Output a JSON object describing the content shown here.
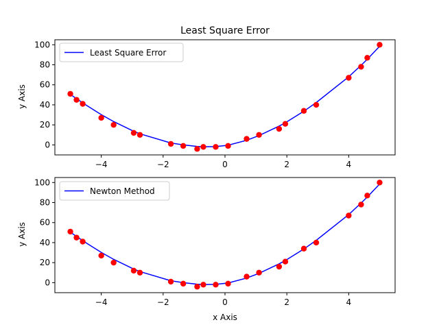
{
  "chart_data": [
    {
      "type": "line",
      "title": "Least Square Error",
      "xlabel": "",
      "ylabel": "y Axis",
      "xlim": [
        -5.5,
        5.5
      ],
      "ylim": [
        -10,
        105
      ],
      "xticks": [
        -4,
        -2,
        0,
        2,
        4
      ],
      "xtick_labels": [
        "−4",
        "−2",
        "0",
        "2",
        "4"
      ],
      "yticks": [
        0,
        20,
        40,
        60,
        80,
        100
      ],
      "ytick_labels": [
        "0",
        "20",
        "40",
        "60",
        "80",
        "100"
      ],
      "grid": false,
      "legend": {
        "placement": "top-left",
        "entries": [
          "Least Square Error"
        ]
      },
      "scatter_color": "#ff0000",
      "line_color": "#0000ff",
      "points": {
        "x": [
          -5.0,
          -4.8,
          -4.6,
          -4.0,
          -3.6,
          -2.95,
          -2.75,
          -1.75,
          -1.35,
          -0.9,
          -0.7,
          -0.3,
          0.1,
          0.7,
          1.1,
          1.75,
          1.95,
          2.55,
          2.95,
          4.0,
          4.4,
          4.6,
          5.0
        ],
        "y": [
          51,
          45,
          41,
          27,
          20,
          12,
          10,
          1,
          -1,
          -4,
          -2,
          -2,
          -1,
          6,
          10,
          16,
          21,
          34,
          40,
          67,
          78,
          87,
          100
        ]
      },
      "series": [
        {
          "name": "Least Square Error",
          "x": [
            -5.0,
            -4.8,
            -4.6,
            -4.0,
            -3.6,
            -2.95,
            -2.75,
            -1.75,
            -1.35,
            -0.9,
            -0.7,
            -0.3,
            0.1,
            0.7,
            1.1,
            1.75,
            1.95,
            2.55,
            2.95,
            4.0,
            4.4,
            4.6,
            5.0
          ],
          "y": [
            50.5,
            46.1,
            41.9,
            30.2,
            23.3,
            13.6,
            11.1,
            1.9,
            0.0,
            -1.5,
            -1.9,
            -1.7,
            -0.3,
            4.6,
            9.3,
            18.8,
            22.1,
            33.6,
            42.3,
            68.0,
            79.5,
            85.5,
            98.5
          ]
        }
      ]
    },
    {
      "type": "line",
      "title": "",
      "xlabel": "x Axis",
      "ylabel": "y Axis",
      "xlim": [
        -5.5,
        5.5
      ],
      "ylim": [
        -10,
        105
      ],
      "xticks": [
        -4,
        -2,
        0,
        2,
        4
      ],
      "xtick_labels": [
        "−4",
        "−2",
        "0",
        "2",
        "4"
      ],
      "yticks": [
        0,
        20,
        40,
        60,
        80,
        100
      ],
      "ytick_labels": [
        "0",
        "20",
        "40",
        "60",
        "80",
        "100"
      ],
      "grid": false,
      "legend": {
        "placement": "top-left",
        "entries": [
          "Newton Method"
        ]
      },
      "scatter_color": "#ff0000",
      "line_color": "#0000ff",
      "points": {
        "x": [
          -5.0,
          -4.8,
          -4.6,
          -4.0,
          -3.6,
          -2.95,
          -2.75,
          -1.75,
          -1.35,
          -0.9,
          -0.7,
          -0.3,
          0.1,
          0.7,
          1.1,
          1.75,
          1.95,
          2.55,
          2.95,
          4.0,
          4.4,
          4.6,
          5.0
        ],
        "y": [
          51,
          45,
          41,
          27,
          20,
          12,
          10,
          1,
          -1,
          -4,
          -2,
          -2,
          -1,
          6,
          10,
          16,
          21,
          34,
          40,
          67,
          78,
          87,
          100
        ]
      },
      "series": [
        {
          "name": "Newton Method",
          "x": [
            -5.0,
            -4.8,
            -4.6,
            -4.0,
            -3.6,
            -2.95,
            -2.75,
            -1.75,
            -1.35,
            -0.9,
            -0.7,
            -0.3,
            0.1,
            0.7,
            1.1,
            1.75,
            1.95,
            2.55,
            2.95,
            4.0,
            4.4,
            4.6,
            5.0
          ],
          "y": [
            50.5,
            46.1,
            41.9,
            30.2,
            23.3,
            13.6,
            11.1,
            1.9,
            0.0,
            -1.5,
            -1.9,
            -1.7,
            -0.3,
            4.6,
            9.3,
            18.8,
            22.1,
            33.6,
            42.3,
            68.0,
            79.5,
            85.5,
            98.5
          ]
        }
      ]
    }
  ]
}
